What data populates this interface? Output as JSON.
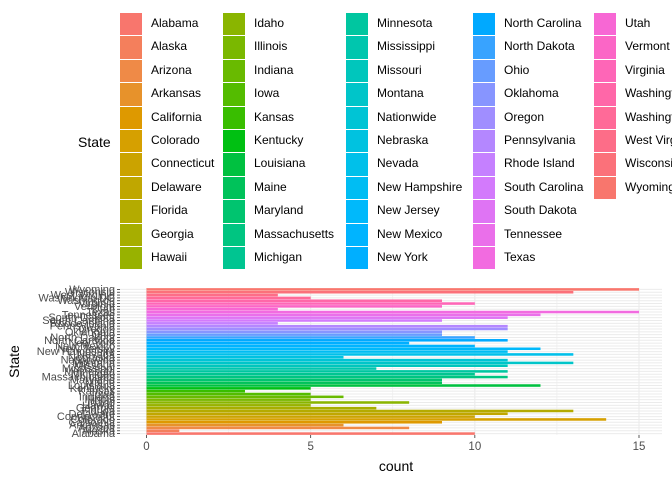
{
  "legend": {
    "title": "State"
  },
  "chart_data": {
    "type": "bar",
    "orientation": "horizontal",
    "xlabel": "count",
    "ylabel": "State",
    "xlim": [
      0,
      15.5
    ],
    "x_ticks": [
      "0",
      "5",
      "10",
      "15"
    ],
    "x_tick_values": [
      0,
      5,
      10,
      15
    ],
    "grid": true,
    "legend_position": "top",
    "categories": [
      "Alabama",
      "Alaska",
      "Arizona",
      "Arkansas",
      "California",
      "Colorado",
      "Connecticut",
      "Delaware",
      "Florida",
      "Georgia",
      "Hawaii",
      "Idaho",
      "Illinois",
      "Indiana",
      "Iowa",
      "Kansas",
      "Kentucky",
      "Louisiana",
      "Maine",
      "Maryland",
      "Massachusetts",
      "Michigan",
      "Minnesota",
      "Mississippi",
      "Missouri",
      "Montana",
      "Nationwide",
      "Nebraska",
      "Nevada",
      "New Hampshire",
      "New Jersey",
      "New Mexico",
      "New York",
      "North Carolina",
      "North Dakota",
      "Ohio",
      "Oklahoma",
      "Oregon",
      "Pennsylvania",
      "Rhode Island",
      "South Carolina",
      "South Dakota",
      "Tennessee",
      "Texas",
      "Utah",
      "Vermont",
      "Virginia",
      "Washington",
      "Washington DC",
      "West Virginia",
      "Wisconsin",
      "Wyoming"
    ],
    "values": [
      10,
      1,
      8,
      6,
      9,
      14,
      10,
      11,
      13,
      7,
      5,
      8,
      5,
      6,
      5,
      3,
      5,
      12,
      9,
      9,
      11,
      10,
      11,
      7,
      11,
      13,
      11,
      6,
      13,
      11,
      12,
      10,
      8,
      11,
      10,
      9,
      9,
      11,
      11,
      4,
      9,
      11,
      12,
      15,
      4,
      9,
      10,
      9,
      5,
      4,
      13,
      15
    ],
    "colors": [
      "#F8766D",
      "#F47F5C",
      "#EF8A47",
      "#E7922B",
      "#DE9900",
      "#D6A000",
      "#CBA300",
      "#C0A700",
      "#B4AB00",
      "#A7AE00",
      "#98B200",
      "#8AB500",
      "#7AB800",
      "#69BA00",
      "#54BC00",
      "#39BE00",
      "#00C012",
      "#00C140",
      "#00C25A",
      "#00C46F",
      "#00C581",
      "#00C591",
      "#00C6A0",
      "#00C6AE",
      "#00C6BC",
      "#00C5C9",
      "#00C4D5",
      "#00C2E0",
      "#00C0EA",
      "#00BDF3",
      "#00B9FB",
      "#00B4FF",
      "#00AFFF",
      "#00A9FF",
      "#38A3FF",
      "#679CFF",
      "#8795FF",
      "#A08EFF",
      "#B487FF",
      "#C580FF",
      "#D37AFC",
      "#DF74F4",
      "#EA6FEA",
      "#F26BE0",
      "#F767D4",
      "#FB66C6",
      "#FE66B7",
      "#FF67A8",
      "#FF6A98",
      "#FD6D88",
      "#FB717A",
      "#F8766D"
    ]
  }
}
